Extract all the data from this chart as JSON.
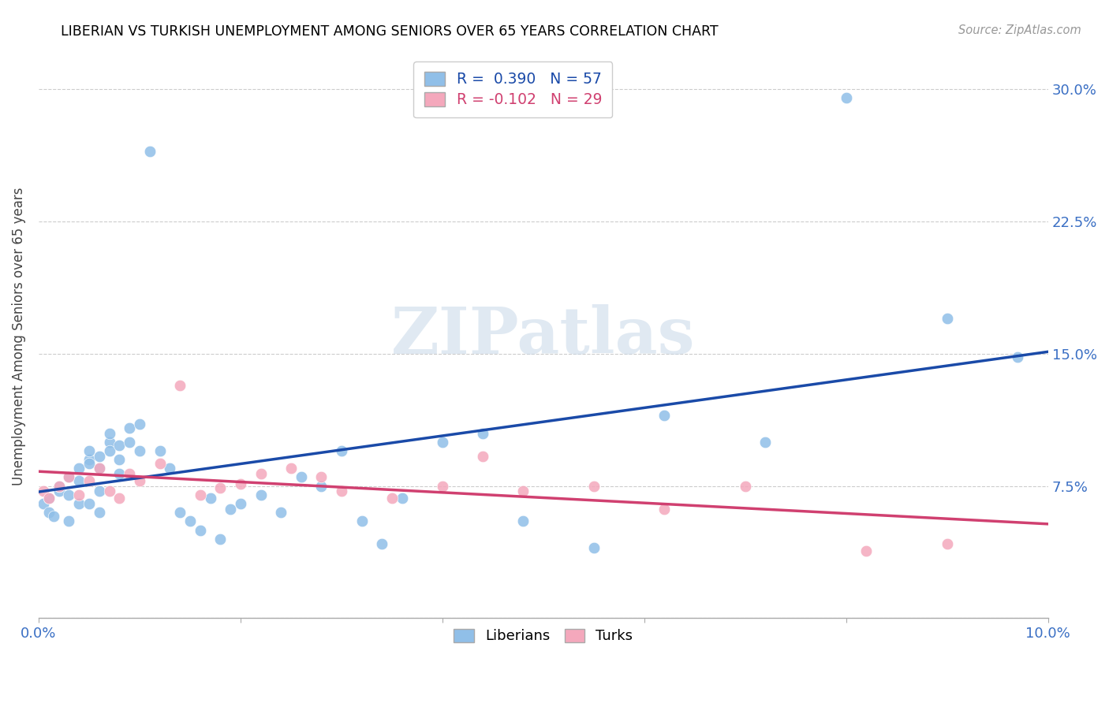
{
  "title": "LIBERIAN VS TURKISH UNEMPLOYMENT AMONG SENIORS OVER 65 YEARS CORRELATION CHART",
  "source": "Source: ZipAtlas.com",
  "ylabel": "Unemployment Among Seniors over 65 years",
  "xlim": [
    0.0,
    0.1
  ],
  "ylim": [
    0.0,
    0.32
  ],
  "xticks": [
    0.0,
    0.02,
    0.04,
    0.06,
    0.08,
    0.1
  ],
  "xticklabels": [
    "0.0%",
    "",
    "",
    "",
    "",
    "10.0%"
  ],
  "yticks_left": [
    0.0,
    0.075,
    0.15,
    0.225,
    0.3
  ],
  "yticks_right": [
    0.0,
    0.075,
    0.15,
    0.225,
    0.3
  ],
  "yticklabels_left": [
    "",
    "",
    "",
    "",
    ""
  ],
  "yticklabels_right": [
    "",
    "7.5%",
    "15.0%",
    "22.5%",
    "30.0%"
  ],
  "liberian_color": "#90bfe8",
  "turkish_color": "#f4a8bc",
  "liberian_line_color": "#1a4aa8",
  "turkish_line_color": "#d04070",
  "liberian_R": 0.39,
  "liberian_N": 57,
  "turkish_R": -0.102,
  "turkish_N": 29,
  "watermark": "ZIPatlas",
  "liberian_x": [
    0.0005,
    0.001,
    0.001,
    0.0015,
    0.002,
    0.002,
    0.003,
    0.003,
    0.003,
    0.004,
    0.004,
    0.004,
    0.005,
    0.005,
    0.005,
    0.005,
    0.006,
    0.006,
    0.006,
    0.006,
    0.007,
    0.007,
    0.007,
    0.008,
    0.008,
    0.008,
    0.009,
    0.009,
    0.01,
    0.01,
    0.011,
    0.012,
    0.013,
    0.014,
    0.015,
    0.016,
    0.017,
    0.018,
    0.019,
    0.02,
    0.022,
    0.024,
    0.026,
    0.028,
    0.03,
    0.032,
    0.034,
    0.036,
    0.04,
    0.044,
    0.048,
    0.055,
    0.062,
    0.072,
    0.08,
    0.09,
    0.097
  ],
  "liberian_y": [
    0.065,
    0.06,
    0.068,
    0.058,
    0.072,
    0.075,
    0.08,
    0.07,
    0.055,
    0.085,
    0.078,
    0.065,
    0.09,
    0.095,
    0.088,
    0.065,
    0.092,
    0.085,
    0.072,
    0.06,
    0.1,
    0.095,
    0.105,
    0.098,
    0.09,
    0.082,
    0.108,
    0.1,
    0.095,
    0.11,
    0.265,
    0.095,
    0.085,
    0.06,
    0.055,
    0.05,
    0.068,
    0.045,
    0.062,
    0.065,
    0.07,
    0.06,
    0.08,
    0.075,
    0.095,
    0.055,
    0.042,
    0.068,
    0.1,
    0.105,
    0.055,
    0.04,
    0.115,
    0.1,
    0.295,
    0.17,
    0.148
  ],
  "turkish_x": [
    0.0005,
    0.001,
    0.002,
    0.003,
    0.004,
    0.005,
    0.006,
    0.007,
    0.008,
    0.009,
    0.01,
    0.012,
    0.014,
    0.016,
    0.018,
    0.02,
    0.022,
    0.025,
    0.028,
    0.03,
    0.035,
    0.04,
    0.044,
    0.048,
    0.055,
    0.062,
    0.07,
    0.082,
    0.09
  ],
  "turkish_y": [
    0.072,
    0.068,
    0.075,
    0.08,
    0.07,
    0.078,
    0.085,
    0.072,
    0.068,
    0.082,
    0.078,
    0.088,
    0.132,
    0.07,
    0.074,
    0.076,
    0.082,
    0.085,
    0.08,
    0.072,
    0.068,
    0.075,
    0.092,
    0.072,
    0.075,
    0.062,
    0.075,
    0.038,
    0.042
  ]
}
